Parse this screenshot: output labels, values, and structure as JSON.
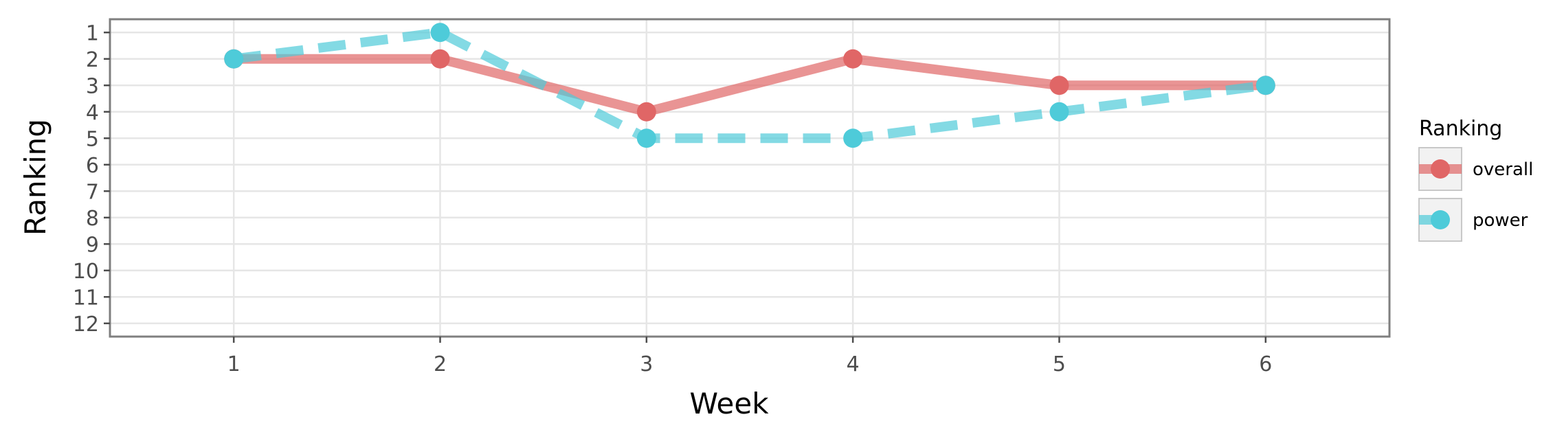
{
  "chart_data": {
    "type": "line",
    "xlabel": "Week",
    "ylabel": "Ranking",
    "x": [
      1,
      2,
      3,
      4,
      5,
      6
    ],
    "x_ticks": [
      1,
      2,
      3,
      4,
      5,
      6
    ],
    "y_ticks": [
      1,
      2,
      3,
      4,
      5,
      6,
      7,
      8,
      9,
      10,
      11,
      12
    ],
    "xlim": [
      0.4,
      6.6
    ],
    "ylim": [
      12.5,
      0.5
    ],
    "y_reversed": true,
    "grid": true,
    "legend": {
      "title": "Ranking",
      "placement": "right"
    },
    "series": [
      {
        "name": "overall",
        "values": [
          2,
          2,
          4,
          2,
          3,
          3
        ],
        "color": "#E06666",
        "line_style": "solid"
      },
      {
        "name": "power",
        "values": [
          2,
          1,
          5,
          5,
          4,
          3
        ],
        "color": "#4ECBD9",
        "line_style": "dashed"
      }
    ]
  }
}
